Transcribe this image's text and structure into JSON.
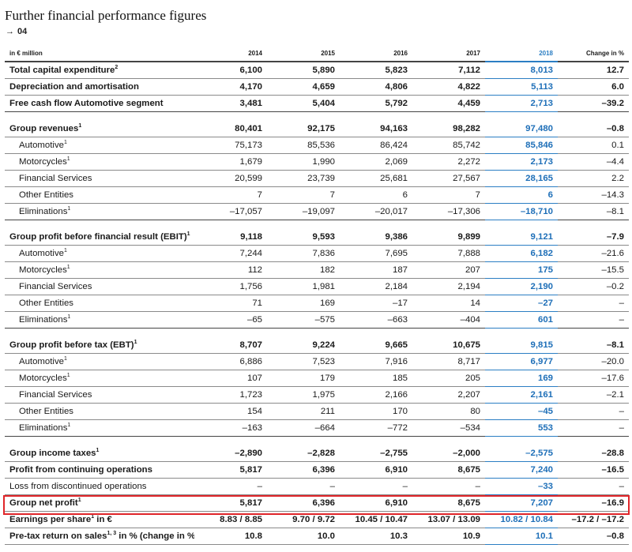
{
  "page": {
    "title": "Further financial performance figures",
    "subtitle_arrow": "→",
    "subtitle": "04"
  },
  "table": {
    "unit_label": "in € million",
    "columns": [
      "2014",
      "2015",
      "2016",
      "2017",
      "2018",
      "Change in %"
    ],
    "highlight_color": "#2b7ec3",
    "box_color": "#e0262a",
    "rows": {
      "capex": {
        "label": "Total capital expenditure",
        "fn": "2",
        "v": [
          "6,100",
          "5,890",
          "5,823",
          "7,112",
          "8,013",
          "12.7"
        ]
      },
      "depr": {
        "label": "Depreciation and amortisation",
        "fn": "",
        "v": [
          "4,170",
          "4,659",
          "4,806",
          "4,822",
          "5,113",
          "6.0"
        ]
      },
      "fcf": {
        "label": "Free cash flow Automotive segment",
        "fn": "",
        "v": [
          "3,481",
          "5,404",
          "5,792",
          "4,459",
          "2,713",
          "–39.2"
        ]
      },
      "rev": {
        "label": "Group revenues",
        "fn": "1",
        "v": [
          "80,401",
          "92,175",
          "94,163",
          "98,282",
          "97,480",
          "–0.8"
        ]
      },
      "rev_auto": {
        "label": "Automotive",
        "fn": "1",
        "v": [
          "75,173",
          "85,536",
          "86,424",
          "85,742",
          "85,846",
          "0.1"
        ]
      },
      "rev_moto": {
        "label": "Motorcycles",
        "fn": "1",
        "v": [
          "1,679",
          "1,990",
          "2,069",
          "2,272",
          "2,173",
          "–4.4"
        ]
      },
      "rev_fs": {
        "label": "Financial Services",
        "fn": "",
        "v": [
          "20,599",
          "23,739",
          "25,681",
          "27,567",
          "28,165",
          "2.2"
        ]
      },
      "rev_other": {
        "label": "Other Entities",
        "fn": "",
        "v": [
          "7",
          "7",
          "6",
          "7",
          "6",
          "–14.3"
        ]
      },
      "rev_elim": {
        "label": "Eliminations",
        "fn": "1",
        "v": [
          "–17,057",
          "–19,097",
          "–20,017",
          "–17,306",
          "–18,710",
          "–8.1"
        ]
      },
      "ebit": {
        "label": "Group profit before financial result (EBIT)",
        "fn": "1",
        "v": [
          "9,118",
          "9,593",
          "9,386",
          "9,899",
          "9,121",
          "–7.9"
        ]
      },
      "ebit_auto": {
        "label": "Automotive",
        "fn": "1",
        "v": [
          "7,244",
          "7,836",
          "7,695",
          "7,888",
          "6,182",
          "–21.6"
        ]
      },
      "ebit_moto": {
        "label": "Motorcycles",
        "fn": "1",
        "v": [
          "112",
          "182",
          "187",
          "207",
          "175",
          "–15.5"
        ]
      },
      "ebit_fs": {
        "label": "Financial Services",
        "fn": "",
        "v": [
          "1,756",
          "1,981",
          "2,184",
          "2,194",
          "2,190",
          "–0.2"
        ]
      },
      "ebit_other": {
        "label": "Other Entities",
        "fn": "",
        "v": [
          "71",
          "169",
          "–17",
          "14",
          "–27",
          "–"
        ]
      },
      "ebit_elim": {
        "label": "Eliminations",
        "fn": "1",
        "v": [
          "–65",
          "–575",
          "–663",
          "–404",
          "601",
          "–"
        ]
      },
      "ebt": {
        "label": "Group profit before tax (EBT)",
        "fn": "1",
        "v": [
          "8,707",
          "9,224",
          "9,665",
          "10,675",
          "9,815",
          "–8.1"
        ]
      },
      "ebt_auto": {
        "label": "Automotive",
        "fn": "1",
        "v": [
          "6,886",
          "7,523",
          "7,916",
          "8,717",
          "6,977",
          "–20.0"
        ]
      },
      "ebt_moto": {
        "label": "Motorcycles",
        "fn": "1",
        "v": [
          "107",
          "179",
          "185",
          "205",
          "169",
          "–17.6"
        ]
      },
      "ebt_fs": {
        "label": "Financial Services",
        "fn": "",
        "v": [
          "1,723",
          "1,975",
          "2,166",
          "2,207",
          "2,161",
          "–2.1"
        ]
      },
      "ebt_other": {
        "label": "Other Entities",
        "fn": "",
        "v": [
          "154",
          "211",
          "170",
          "80",
          "–45",
          "–"
        ]
      },
      "ebt_elim": {
        "label": "Eliminations",
        "fn": "1",
        "v": [
          "–163",
          "–664",
          "–772",
          "–534",
          "553",
          "–"
        ]
      },
      "tax": {
        "label": "Group income taxes",
        "fn": "1",
        "v": [
          "–2,890",
          "–2,828",
          "–2,755",
          "–2,000",
          "–2,575",
          "–28.8"
        ]
      },
      "cont": {
        "label": "Profit from continuing operations",
        "fn": "",
        "v": [
          "5,817",
          "6,396",
          "6,910",
          "8,675",
          "7,240",
          "–16.5"
        ]
      },
      "disc": {
        "label": "Loss from discontinued operations",
        "fn": "",
        "v": [
          "–",
          "–",
          "–",
          "–",
          "–33",
          "–"
        ]
      },
      "net": {
        "label": "Group net profit",
        "fn": "1",
        "v": [
          "5,817",
          "6,396",
          "6,910",
          "8,675",
          "7,207",
          "–16.9"
        ]
      },
      "eps": {
        "label": "Earnings per share",
        "fn": "1",
        "suffix": " in €",
        "v": [
          "8.83 / 8.85",
          "9.70 / 9.72",
          "10.45 / 10.47",
          "13.07 / 13.09",
          "10.82 / 10.84",
          "–17.2 / –17.2"
        ]
      },
      "margin": {
        "label": "Pre-tax return on sales",
        "fn": "1, 3",
        "suffix": " in % (change in %pts)",
        "v": [
          "10.8",
          "10.0",
          "10.3",
          "10.9",
          "10.1",
          "–0.8"
        ]
      }
    }
  }
}
